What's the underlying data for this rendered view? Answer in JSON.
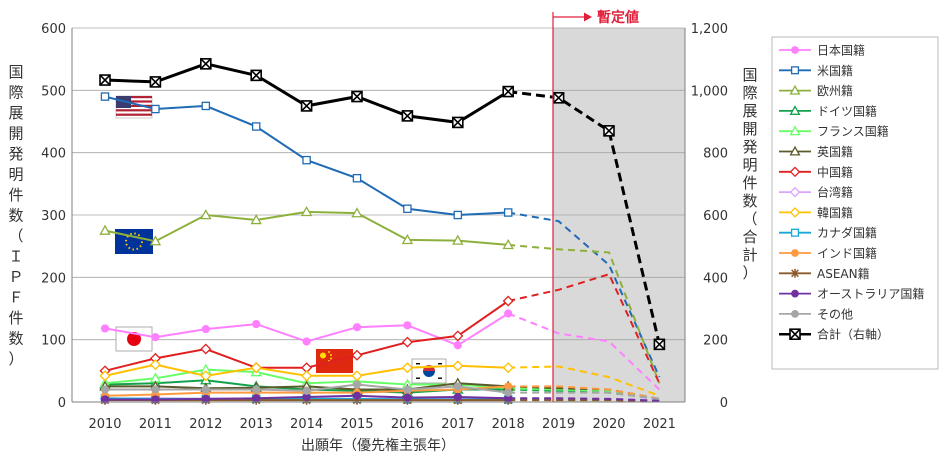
{
  "chart_data": {
    "type": "line",
    "x": [
      "2010",
      "2011",
      "2012",
      "2013",
      "2014",
      "2015",
      "2016",
      "2017",
      "2018",
      "2019",
      "2020",
      "2021"
    ],
    "xlabel": "出願年（優先権主張年）",
    "ylabel_left": "国際展開発明件数（ＩＰＦ件数）",
    "ylabel_right": "国際展開発明件数（合計）",
    "ylim_left": [
      0,
      600
    ],
    "yticks_left": [
      "0",
      "100",
      "200",
      "300",
      "400",
      "500",
      "600"
    ],
    "ylim_right": [
      0,
      1200
    ],
    "yticks_right": [
      "0",
      "200",
      "400",
      "600",
      "800",
      "1,000",
      "1,200"
    ],
    "grid": true,
    "legend_position": "right",
    "provisional_label": "暫定値",
    "provisional_from": "2019",
    "series": [
      {
        "name": "日本国籍",
        "color": "#ff80ff",
        "marker": "circle",
        "values": [
          118,
          104,
          117,
          125,
          97,
          120,
          123,
          91,
          142,
          110,
          97,
          20
        ]
      },
      {
        "name": "米国籍",
        "color": "#1f6bb5",
        "marker": "square",
        "values": [
          490,
          470,
          475,
          442,
          388,
          359,
          310,
          300,
          304,
          290,
          220,
          40
        ]
      },
      {
        "name": "欧州籍",
        "color": "#8db03c",
        "marker": "triangle",
        "values": [
          275,
          258,
          300,
          292,
          305,
          303,
          260,
          259,
          252,
          245,
          240,
          30
        ]
      },
      {
        "name": "ドイツ国籍",
        "color": "#13a24b",
        "marker": "triangle",
        "values": [
          28,
          30,
          35,
          25,
          20,
          18,
          15,
          20,
          20,
          18,
          15,
          5
        ]
      },
      {
        "name": "フランス国籍",
        "color": "#66ff66",
        "marker": "triangle",
        "values": [
          30,
          38,
          52,
          48,
          30,
          33,
          28,
          28,
          22,
          20,
          18,
          5
        ]
      },
      {
        "name": "英国籍",
        "color": "#5a5a2a",
        "marker": "triangle",
        "values": [
          25,
          25,
          22,
          23,
          25,
          20,
          20,
          30,
          25,
          22,
          20,
          5
        ]
      },
      {
        "name": "中国籍",
        "color": "#e02020",
        "marker": "diamond",
        "values": [
          50,
          70,
          85,
          55,
          55,
          75,
          96,
          106,
          162,
          180,
          205,
          30
        ]
      },
      {
        "name": "台湾籍",
        "color": "#d9a3ff",
        "marker": "diamond",
        "values": [
          5,
          6,
          5,
          6,
          5,
          5,
          5,
          5,
          5,
          5,
          5,
          3
        ]
      },
      {
        "name": "韓国籍",
        "color": "#ffc000",
        "marker": "diamond",
        "values": [
          42,
          60,
          42,
          55,
          42,
          42,
          55,
          58,
          55,
          57,
          40,
          10
        ]
      },
      {
        "name": "カナダ国籍",
        "color": "#17a8d8",
        "marker": "square",
        "values": [
          6,
          5,
          5,
          5,
          5,
          5,
          4,
          4,
          4,
          4,
          4,
          2
        ]
      },
      {
        "name": "インド国籍",
        "color": "#ff9a40",
        "marker": "circle",
        "values": [
          10,
          12,
          15,
          15,
          15,
          15,
          18,
          20,
          25,
          25,
          20,
          5
        ]
      },
      {
        "name": "ASEAN籍",
        "color": "#8b5a2b",
        "marker": "star",
        "values": [
          3,
          3,
          3,
          3,
          3,
          3,
          3,
          3,
          3,
          3,
          3,
          1
        ]
      },
      {
        "name": "オーストラリア国籍",
        "color": "#7030a0",
        "marker": "circle",
        "values": [
          4,
          4,
          5,
          6,
          8,
          10,
          7,
          8,
          6,
          6,
          5,
          2
        ]
      },
      {
        "name": "その他",
        "color": "#a6a6a6",
        "marker": "circle",
        "values": [
          20,
          20,
          20,
          20,
          18,
          28,
          20,
          25,
          15,
          15,
          15,
          5
        ]
      },
      {
        "name": "合計（右軸）",
        "color": "#000000",
        "marker": "xsquare",
        "axis": "right",
        "values": [
          1033,
          1027,
          1085,
          1048,
          950,
          980,
          918,
          897,
          996,
          976,
          870,
          185
        ]
      }
    ]
  }
}
